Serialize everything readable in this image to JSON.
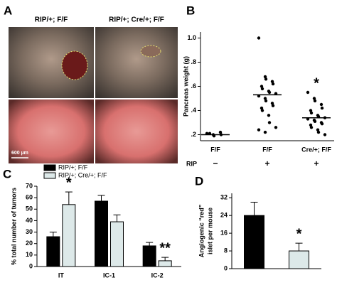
{
  "panel_a": {
    "label": "A",
    "left_title": "RIP/+; F/F",
    "right_title": "RIP/+; Cre/+; F/F",
    "scale_bar": "600 µm"
  },
  "chart_data": [
    {
      "type": "strip",
      "label": "B",
      "y_label": "Pancreas weight (g)",
      "categories": [
        "F/F",
        "F/F",
        "Cre/+; F/F"
      ],
      "row_label": "RIP",
      "row_values": [
        "−",
        "+",
        "+"
      ],
      "values": [
        [
          0.21,
          0.2,
          0.19,
          0.22,
          0.2,
          0.21
        ],
        [
          1.0,
          0.68,
          0.66,
          0.64,
          0.62,
          0.6,
          0.58,
          0.56,
          0.55,
          0.54,
          0.52,
          0.5,
          0.48,
          0.46,
          0.44,
          0.42,
          0.4,
          0.36,
          0.3,
          0.26,
          0.24,
          0.22
        ],
        [
          0.55,
          0.5,
          0.48,
          0.45,
          0.42,
          0.4,
          0.38,
          0.36,
          0.35,
          0.34,
          0.33,
          0.32,
          0.31,
          0.3,
          0.29,
          0.28,
          0.26,
          0.24,
          0.22,
          0.2
        ]
      ],
      "means": [
        0.2,
        0.53,
        0.34
      ],
      "color": "#000000",
      "annotations": [
        null,
        null,
        "*"
      ],
      "ylim": [
        0.15,
        1.05
      ],
      "yticks": [
        {
          "value": 0.2,
          "label": ".2"
        },
        {
          "value": 0.4,
          "label": ".4"
        },
        {
          "value": 0.6,
          "label": ".6"
        },
        {
          "value": 0.8,
          "label": ".8"
        },
        {
          "value": 1.0,
          "label": "1.0"
        }
      ]
    },
    {
      "type": "grouped_bar",
      "label": "C",
      "y_label": "% total number of tumors",
      "categories": [
        "IT",
        "IC-1",
        "IC-2"
      ],
      "series": [
        {
          "name": "RIP/+; F/F",
          "color": "#000000",
          "values": [
            26,
            57,
            18
          ],
          "errors": [
            4,
            5,
            3
          ]
        },
        {
          "name": "RIP/+; Cre/+; F/F",
          "color": "#dde9e9",
          "values": [
            54,
            39,
            5
          ],
          "errors": [
            11,
            6,
            3
          ]
        }
      ],
      "annotations": [
        "*",
        null,
        "**"
      ],
      "ylim": [
        0,
        70
      ],
      "yticks": [
        0,
        10,
        20,
        30,
        40,
        50,
        60,
        70
      ]
    },
    {
      "type": "bar",
      "label": "D",
      "y_label": [
        "Angiogenic “red”",
        "islet per mouse"
      ],
      "categories": [
        null,
        null
      ],
      "values": [
        24,
        8
      ],
      "errors": [
        6,
        3.5
      ],
      "colors": [
        "#000000",
        "#dde9e9"
      ],
      "annotations": [
        null,
        "*"
      ],
      "ylim": [
        0,
        34
      ],
      "yticks": [
        0,
        8,
        16,
        24,
        32
      ]
    }
  ]
}
